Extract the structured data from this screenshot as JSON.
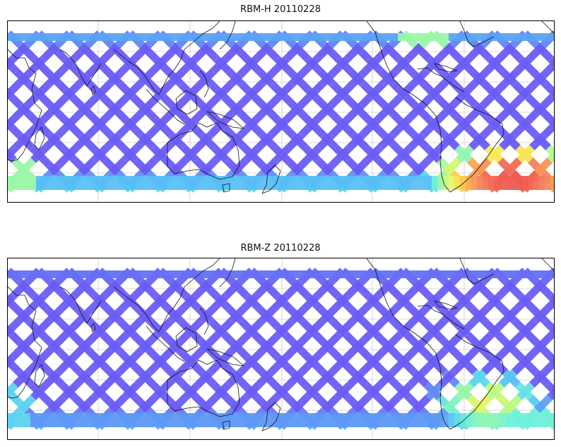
{
  "panels": [
    {
      "title": "RBM-H 20110228",
      "colormap": [
        "#6a5cf6",
        "#5f8ff5",
        "#57c8f7",
        "#6ff0d9",
        "#b6fb86",
        "#f6f35a",
        "#fbbf4e",
        "#f6805a",
        "#ee5050"
      ],
      "hotspot": "south-east corner (southern Atlantic)"
    },
    {
      "title": "RBM-Z 20110228",
      "colormap": [
        "#6a5cf6",
        "#5f8ff5",
        "#57c8f7",
        "#6ff0d9",
        "#b6fb86",
        "#f6f35a"
      ],
      "hotspot": "south-east region (South Atlantic Anomaly)"
    }
  ],
  "colors": {
    "background": "#ffffff",
    "frame": "#000000",
    "coastline": "#111111",
    "gridline": "#cccccc"
  }
}
